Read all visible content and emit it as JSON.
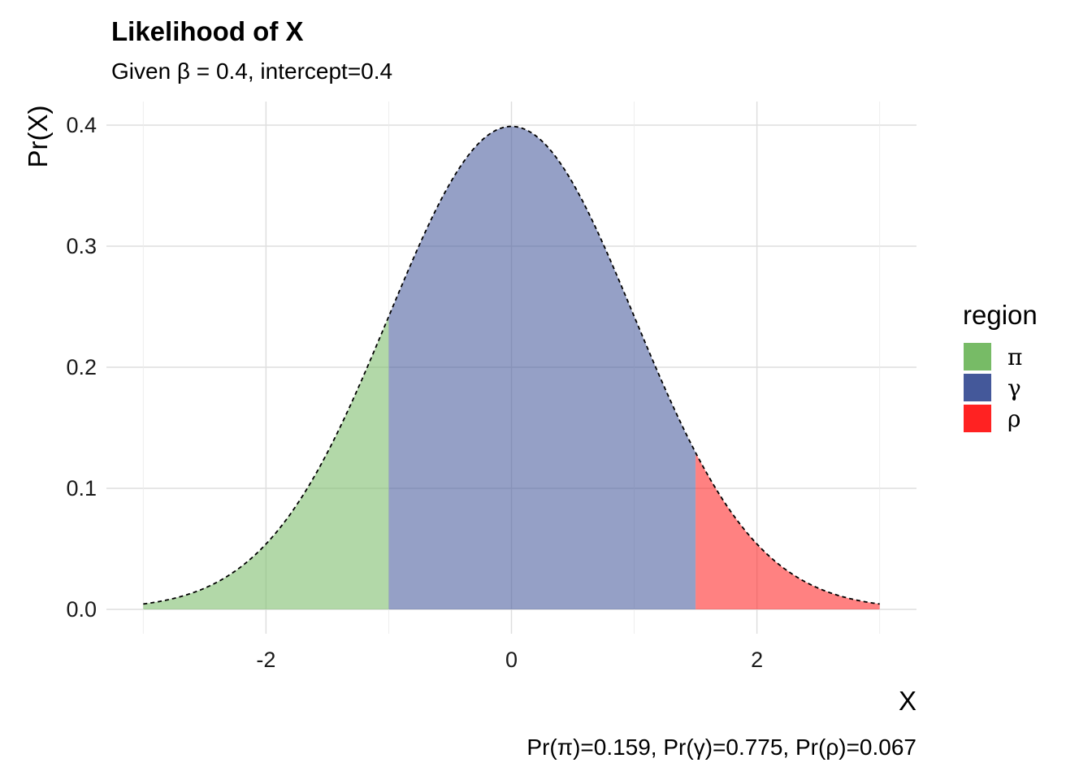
{
  "chart_data": {
    "type": "area",
    "title": "Likelihood of X",
    "subtitle": "Given β = 0.4, intercept=0.4",
    "xlabel": "X",
    "ylabel": "Pr(X)",
    "caption": "Pr(π)=0.159, Pr(γ)=0.775, Pr(ρ)=0.067",
    "distribution": "standard normal density",
    "x_range": [
      -3,
      3
    ],
    "xlim": [
      -3.3,
      3.3
    ],
    "ylim": [
      0,
      0.4
    ],
    "x_ticks": [
      {
        "value": -2,
        "label": "-2"
      },
      {
        "value": 0,
        "label": "0"
      },
      {
        "value": 2,
        "label": "2"
      }
    ],
    "y_ticks": [
      {
        "value": 0.0,
        "label": "0.0"
      },
      {
        "value": 0.1,
        "label": "0.1"
      },
      {
        "value": 0.2,
        "label": "0.2"
      },
      {
        "value": 0.3,
        "label": "0.3"
      },
      {
        "value": 0.4,
        "label": "0.4"
      }
    ],
    "grid": true,
    "legend": {
      "title": "region",
      "position": "right",
      "entries": [
        {
          "label": "π",
          "color": "#77bb66"
        },
        {
          "label": "γ",
          "color": "#44589a"
        },
        {
          "label": "ρ",
          "color": "#ff2222"
        }
      ]
    },
    "regions": [
      {
        "label": "π",
        "from": -3,
        "to": -1,
        "color": "#77bb66",
        "probability": 0.159
      },
      {
        "label": "γ",
        "from": -1,
        "to": 1.5,
        "color": "#44589a",
        "probability": 0.775
      },
      {
        "label": "ρ",
        "from": 1.5,
        "to": 3,
        "color": "#ff2222",
        "probability": 0.067
      }
    ],
    "curve_style": "dashed",
    "fill_opacity": 0.57
  }
}
